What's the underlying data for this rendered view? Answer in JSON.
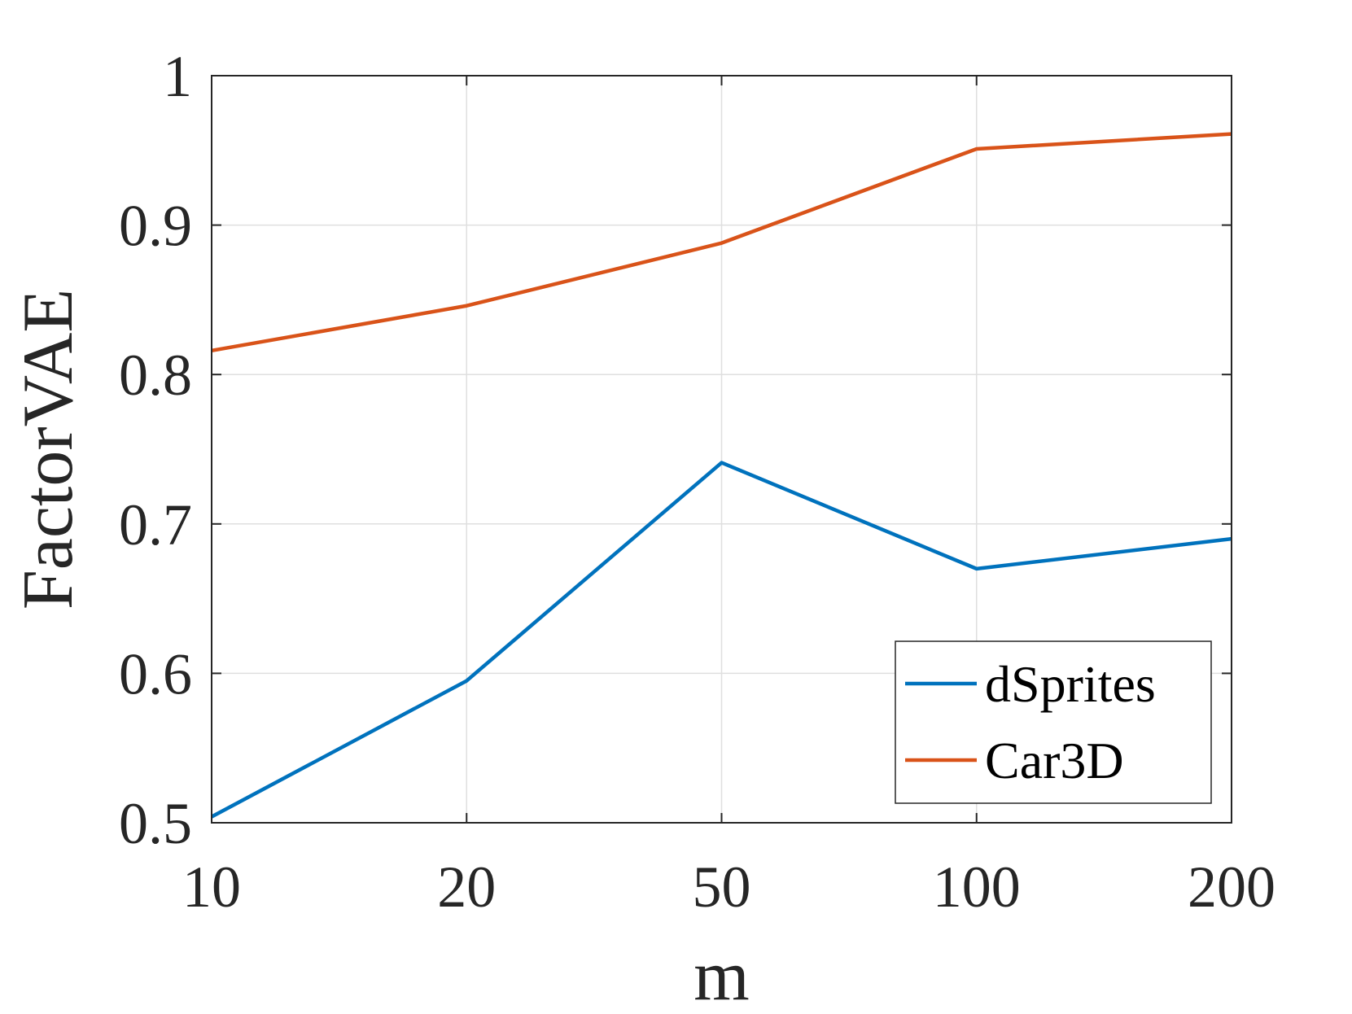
{
  "chart_data": {
    "type": "line",
    "categories": [
      "10",
      "20",
      "50",
      "100",
      "200"
    ],
    "series": [
      {
        "name": "dSprites",
        "color": "#0072BD",
        "values": [
          0.504,
          0.595,
          0.741,
          0.67,
          0.69
        ]
      },
      {
        "name": "Car3D",
        "color": "#D95319",
        "values": [
          0.816,
          0.846,
          0.888,
          0.951,
          0.961
        ]
      }
    ],
    "title": "",
    "xlabel": "m",
    "ylabel": "FactorVAE",
    "ylim": [
      0.5,
      1
    ],
    "yticks": [
      0.5,
      0.6,
      0.7,
      0.8,
      0.9,
      1
    ],
    "ytick_labels": [
      "0.5",
      "0.6",
      "0.7",
      "0.8",
      "0.9",
      "1"
    ],
    "grid": true,
    "legend_position": "bottom-right"
  }
}
